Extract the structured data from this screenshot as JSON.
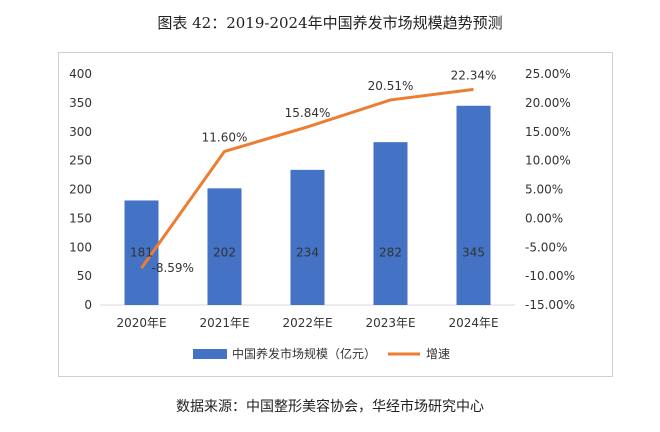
{
  "title": "图表 42：2019-2024年中国养发市场规模趋势预测",
  "source": "数据来源：中国整形美容协会，华经市场研究中心",
  "colors": {
    "bar": "#4472C4",
    "line": "#ED7D31",
    "text": "#333333",
    "frame": "#d0d0d0"
  },
  "chart_data": {
    "type": "bar+line",
    "categories": [
      "2020年E",
      "2021年E",
      "2022年E",
      "2023年E",
      "2024年E"
    ],
    "series": [
      {
        "name": "中国养发市场规模（亿元）",
        "type": "bar",
        "axis": "left",
        "values": [
          181,
          202,
          234,
          282,
          345
        ],
        "labels": [
          "181",
          "202",
          "234",
          "282",
          "345"
        ]
      },
      {
        "name": "增速",
        "type": "line",
        "axis": "right",
        "values": [
          -8.59,
          11.6,
          15.84,
          20.51,
          22.34
        ],
        "labels": [
          "-8.59%",
          "11.60%",
          "15.84%",
          "20.51%",
          "22.34%"
        ]
      }
    ],
    "y_left": {
      "min": 0,
      "max": 400,
      "ticks": [
        "0",
        "50",
        "100",
        "150",
        "200",
        "250",
        "300",
        "350",
        "400"
      ]
    },
    "y_right": {
      "min": -15,
      "max": 25,
      "ticks": [
        "-15.00%",
        "-10.00%",
        "-5.00%",
        "0.00%",
        "5.00%",
        "10.00%",
        "15.00%",
        "20.00%",
        "25.00%"
      ]
    },
    "grid": false,
    "legend_position": "bottom"
  }
}
